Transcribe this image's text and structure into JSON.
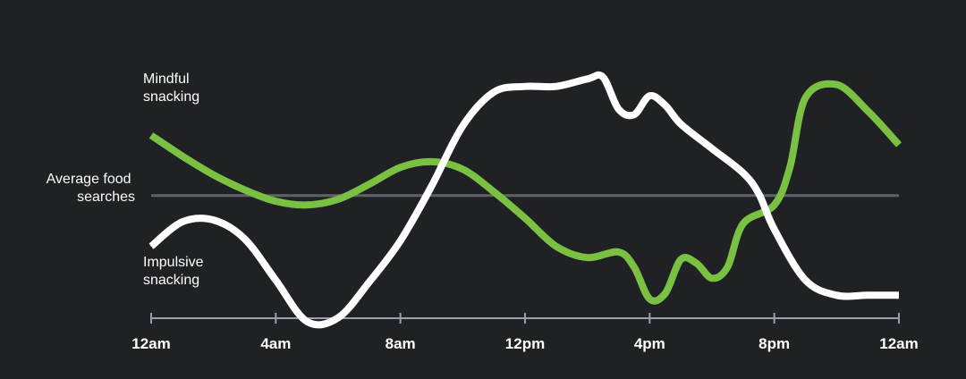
{
  "chart_data": {
    "type": "line",
    "title": "",
    "xlabel": "",
    "ylabel": "",
    "x_range_hours": [
      0,
      24
    ],
    "y_range": [
      -60,
      65
    ],
    "grid": false,
    "legend": "inline-left",
    "axis": {
      "tick_hours": [
        0,
        4,
        8,
        12,
        16,
        20,
        24
      ],
      "tick_labels": [
        "12am",
        "4am",
        "8am",
        "12pm",
        "4pm",
        "8pm",
        "12am"
      ],
      "color": "#9aa0a6"
    },
    "baseline": {
      "label_lines": [
        "Average food",
        "searches"
      ],
      "value": 0,
      "color": "#5f6368"
    },
    "series": [
      {
        "name": "Mindful snacking",
        "label_lines": [
          "Mindful",
          "snacking"
        ],
        "color": "#7ac143",
        "points": [
          [
            0,
            32
          ],
          [
            1,
            21
          ],
          [
            2,
            11
          ],
          [
            3,
            3
          ],
          [
            4,
            -3
          ],
          [
            5,
            -5
          ],
          [
            6,
            -2
          ],
          [
            7,
            6
          ],
          [
            8,
            15
          ],
          [
            9,
            18
          ],
          [
            10,
            14
          ],
          [
            11,
            2
          ],
          [
            12,
            -12
          ],
          [
            13,
            -27
          ],
          [
            14,
            -33
          ],
          [
            15,
            -30
          ],
          [
            15.5,
            -38
          ],
          [
            16,
            -55
          ],
          [
            16.5,
            -52
          ],
          [
            17,
            -34
          ],
          [
            17.5,
            -36
          ],
          [
            18,
            -44
          ],
          [
            18.5,
            -38
          ],
          [
            19,
            -15
          ],
          [
            20,
            -5
          ],
          [
            20.5,
            15
          ],
          [
            21,
            52
          ],
          [
            22,
            59
          ],
          [
            23,
            45
          ],
          [
            24,
            27
          ]
        ]
      },
      {
        "name": "Impulsive snacking",
        "label_lines": [
          "Impulsive",
          "snacking"
        ],
        "color": "#ffffff",
        "points": [
          [
            0,
            -27
          ],
          [
            1,
            -14
          ],
          [
            2,
            -13
          ],
          [
            3,
            -23
          ],
          [
            4,
            -45
          ],
          [
            5,
            -67
          ],
          [
            6,
            -65
          ],
          [
            7,
            -46
          ],
          [
            8,
            -24
          ],
          [
            9,
            5
          ],
          [
            10,
            37
          ],
          [
            11,
            55
          ],
          [
            12,
            58
          ],
          [
            13,
            58
          ],
          [
            14,
            62
          ],
          [
            14.5,
            63
          ],
          [
            15,
            46
          ],
          [
            15.5,
            43
          ],
          [
            16,
            53
          ],
          [
            16.5,
            48
          ],
          [
            17,
            38
          ],
          [
            18,
            25
          ],
          [
            19,
            12
          ],
          [
            19.5,
            1
          ],
          [
            20,
            -18
          ],
          [
            21,
            -45
          ],
          [
            22,
            -53
          ],
          [
            23,
            -53
          ],
          [
            24,
            -53
          ]
        ]
      }
    ]
  }
}
